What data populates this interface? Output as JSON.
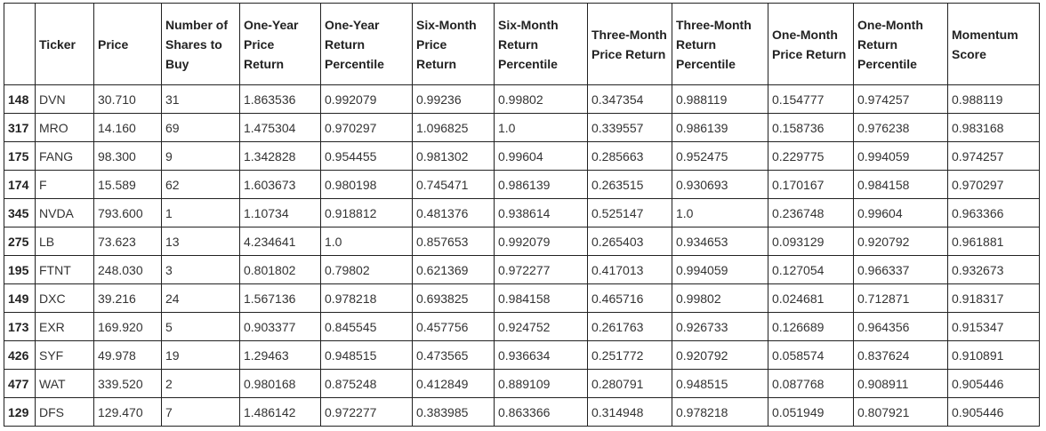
{
  "columns": [
    {
      "key": "index",
      "label": ""
    },
    {
      "key": "ticker",
      "label": "Ticker"
    },
    {
      "key": "price",
      "label": "Price"
    },
    {
      "key": "shares",
      "label": "Number of Shares to Buy"
    },
    {
      "key": "one_year_return",
      "label": "One-Year Price Return"
    },
    {
      "key": "one_year_pct",
      "label": "One-Year Return Percentile"
    },
    {
      "key": "six_month_return",
      "label": "Six-Month Price Return"
    },
    {
      "key": "six_month_pct",
      "label": "Six-Month Return Percentile"
    },
    {
      "key": "three_month_return",
      "label": "Three-Month Price Return"
    },
    {
      "key": "three_month_pct",
      "label": "Three-Month Return Percentile"
    },
    {
      "key": "one_month_return",
      "label": "One-Month Price Return"
    },
    {
      "key": "one_month_pct",
      "label": "One-Month Return Percentile"
    },
    {
      "key": "momentum",
      "label": "Momentum Score"
    }
  ],
  "rows": [
    [
      "148",
      "DVN",
      "30.710",
      "31",
      "1.863536",
      "0.992079",
      "0.99236",
      "0.99802",
      "0.347354",
      "0.988119",
      "0.154777",
      "0.974257",
      "0.988119"
    ],
    [
      "317",
      "MRO",
      "14.160",
      "69",
      "1.475304",
      "0.970297",
      "1.096825",
      "1.0",
      "0.339557",
      "0.986139",
      "0.158736",
      "0.976238",
      "0.983168"
    ],
    [
      "175",
      "FANG",
      "98.300",
      "9",
      "1.342828",
      "0.954455",
      "0.981302",
      "0.99604",
      "0.285663",
      "0.952475",
      "0.229775",
      "0.994059",
      "0.974257"
    ],
    [
      "174",
      "F",
      "15.589",
      "62",
      "1.603673",
      "0.980198",
      "0.745471",
      "0.986139",
      "0.263515",
      "0.930693",
      "0.170167",
      "0.984158",
      "0.970297"
    ],
    [
      "345",
      "NVDA",
      "793.600",
      "1",
      "1.10734",
      "0.918812",
      "0.481376",
      "0.938614",
      "0.525147",
      "1.0",
      "0.236748",
      "0.99604",
      "0.963366"
    ],
    [
      "275",
      "LB",
      "73.623",
      "13",
      "4.234641",
      "1.0",
      "0.857653",
      "0.992079",
      "0.265403",
      "0.934653",
      "0.093129",
      "0.920792",
      "0.961881"
    ],
    [
      "195",
      "FTNT",
      "248.030",
      "3",
      "0.801802",
      "0.79802",
      "0.621369",
      "0.972277",
      "0.417013",
      "0.994059",
      "0.127054",
      "0.966337",
      "0.932673"
    ],
    [
      "149",
      "DXC",
      "39.216",
      "24",
      "1.567136",
      "0.978218",
      "0.693825",
      "0.984158",
      "0.465716",
      "0.99802",
      "0.024681",
      "0.712871",
      "0.918317"
    ],
    [
      "173",
      "EXR",
      "169.920",
      "5",
      "0.903377",
      "0.845545",
      "0.457756",
      "0.924752",
      "0.261763",
      "0.926733",
      "0.126689",
      "0.964356",
      "0.915347"
    ],
    [
      "426",
      "SYF",
      "49.978",
      "19",
      "1.29463",
      "0.948515",
      "0.473565",
      "0.936634",
      "0.251772",
      "0.920792",
      "0.058574",
      "0.837624",
      "0.910891"
    ],
    [
      "477",
      "WAT",
      "339.520",
      "2",
      "0.980168",
      "0.875248",
      "0.412849",
      "0.889109",
      "0.280791",
      "0.948515",
      "0.087768",
      "0.908911",
      "0.905446"
    ],
    [
      "129",
      "DFS",
      "129.470",
      "7",
      "1.486142",
      "0.972277",
      "0.383985",
      "0.863366",
      "0.314948",
      "0.978218",
      "0.051949",
      "0.807921",
      "0.905446"
    ]
  ]
}
